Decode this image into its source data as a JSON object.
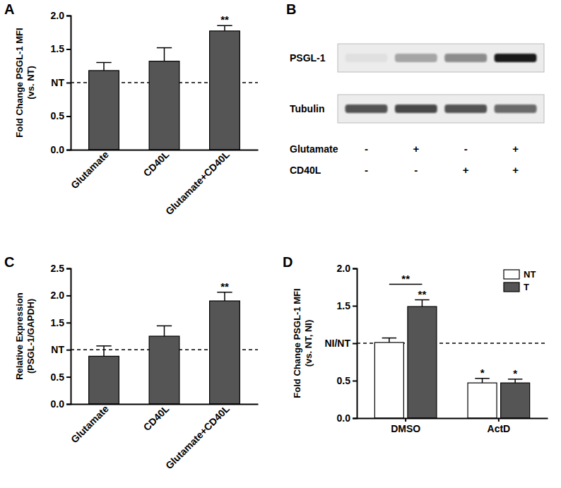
{
  "chart_data": [
    {
      "type": "bar",
      "panel": "A",
      "ylabel": [
        "Fold Change PSGL-1 MFI",
        "(vs. NT)"
      ],
      "categories": [
        "Glutamate",
        "CD40L",
        "Glutamate+CD40L"
      ],
      "values": [
        1.18,
        1.32,
        1.77
      ],
      "errors": [
        0.12,
        0.2,
        0.08
      ],
      "significance": [
        null,
        null,
        "**"
      ],
      "color": "#555555",
      "reference_line": 1,
      "ylim": [
        0,
        2
      ],
      "yticks": [
        {
          "value": 0,
          "label": "0.0"
        },
        {
          "value": 0.5,
          "label": "0.5"
        },
        {
          "value": 1,
          "label": "NT"
        },
        {
          "value": 1.5,
          "label": "1.5"
        },
        {
          "value": 2,
          "label": "2.0"
        }
      ]
    },
    {
      "type": "blot",
      "panel": "B",
      "rows": [
        {
          "name": "PSGL-1",
          "intensity": [
            0.05,
            0.3,
            0.45,
            0.95
          ]
        },
        {
          "name": "Tubulin",
          "intensity": [
            0.7,
            0.75,
            0.7,
            0.6
          ]
        }
      ],
      "treatments": [
        {
          "name": "Glutamate",
          "values": [
            "-",
            "+",
            "-",
            "+"
          ]
        },
        {
          "name": "CD40L",
          "values": [
            "-",
            "-",
            "+",
            "+"
          ]
        }
      ]
    },
    {
      "type": "bar",
      "panel": "C",
      "ylabel": [
        "Relative Expression",
        "(PSGL-1/GAPDH)"
      ],
      "categories": [
        "Glutamate",
        "CD40L",
        "Glutamate+CD40L"
      ],
      "values": [
        0.88,
        1.25,
        1.9
      ],
      "errors": [
        0.19,
        0.19,
        0.16
      ],
      "significance": [
        null,
        null,
        "**"
      ],
      "color": "#555555",
      "reference_line": 1,
      "ylim": [
        0,
        2.5
      ],
      "yticks": [
        {
          "value": 0,
          "label": "0.0"
        },
        {
          "value": 0.5,
          "label": "0.5"
        },
        {
          "value": 1,
          "label": "NT"
        },
        {
          "value": 1.5,
          "label": "1.5"
        },
        {
          "value": 2,
          "label": "2.0"
        },
        {
          "value": 2.5,
          "label": "2.5"
        }
      ]
    },
    {
      "type": "bar",
      "panel": "D",
      "ylabel": [
        "Fold Change PSGL-1 MFI",
        "(vs. NT, NI)"
      ],
      "categories": [
        "DMSO",
        "ActD"
      ],
      "series": [
        {
          "name": "NT",
          "color": "#ffffff",
          "values": [
            1.01,
            0.47
          ],
          "errors": [
            0.06,
            0.06
          ],
          "significance": [
            null,
            "*"
          ]
        },
        {
          "name": "T",
          "color": "#555555",
          "values": [
            1.49,
            0.47
          ],
          "errors": [
            0.09,
            0.05
          ],
          "significance": [
            "**",
            "*"
          ]
        }
      ],
      "comparisons": [
        {
          "category_index": 0,
          "label": "**"
        }
      ],
      "legend": "top-right",
      "reference_line": 1,
      "ylim": [
        0,
        2
      ],
      "yticks": [
        {
          "value": 0,
          "label": "0.0"
        },
        {
          "value": 0.5,
          "label": "0.5"
        },
        {
          "value": 1,
          "label": "NI/NT"
        },
        {
          "value": 1.5,
          "label": "1.5"
        },
        {
          "value": 2,
          "label": "2.0"
        }
      ]
    }
  ]
}
